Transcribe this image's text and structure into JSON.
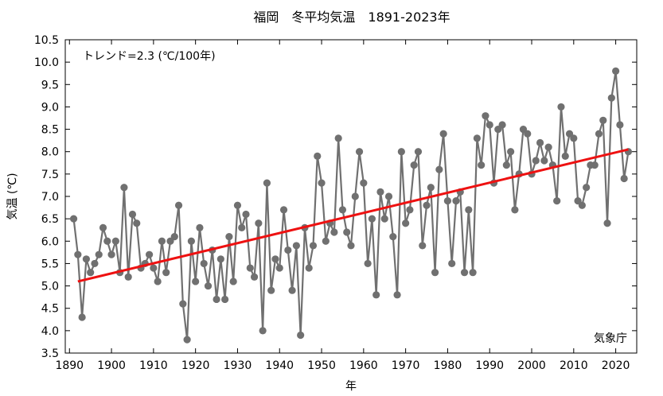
{
  "chart_data": {
    "type": "line",
    "title": "福岡　冬平均気温　1891-2023年",
    "xlabel": "年",
    "ylabel": "気温 (℃)",
    "trend_label": "トレンド=2.3 (℃/100年)",
    "source": "気象庁",
    "xlim": [
      1889,
      2025
    ],
    "ylim": [
      3.5,
      10.5
    ],
    "xticks": [
      1890,
      1900,
      1910,
      1920,
      1930,
      1940,
      1950,
      1960,
      1970,
      1980,
      1990,
      2000,
      2010,
      2020
    ],
    "yticks": [
      3.5,
      4.0,
      4.5,
      5.0,
      5.5,
      6.0,
      6.5,
      7.0,
      7.5,
      8.0,
      8.5,
      9.0,
      9.5,
      10.0,
      10.5
    ],
    "grid": false,
    "colors": {
      "series": "#707070",
      "trend": "#ee1111"
    },
    "x_start": 1891,
    "values": [
      6.5,
      5.7,
      4.3,
      5.6,
      5.3,
      5.5,
      5.7,
      6.3,
      6.0,
      5.7,
      6.0,
      5.3,
      7.2,
      5.2,
      6.6,
      6.4,
      5.4,
      5.5,
      5.7,
      5.4,
      5.1,
      6.0,
      5.3,
      6.0,
      6.1,
      6.8,
      4.6,
      3.8,
      6.0,
      5.1,
      6.3,
      5.5,
      5.0,
      5.8,
      4.7,
      5.6,
      4.7,
      6.1,
      5.1,
      6.8,
      6.3,
      6.6,
      5.4,
      5.2,
      6.4,
      4.0,
      7.3,
      4.9,
      5.6,
      5.4,
      6.7,
      5.8,
      4.9,
      5.9,
      3.9,
      6.3,
      5.4,
      5.9,
      7.9,
      7.3,
      6.0,
      6.4,
      6.2,
      8.3,
      6.7,
      6.2,
      5.9,
      7.0,
      8.0,
      7.3,
      5.5,
      6.5,
      4.8,
      7.1,
      6.5,
      7.0,
      6.1,
      4.8,
      8.0,
      6.4,
      6.7,
      7.7,
      8.0,
      5.9,
      6.8,
      7.2,
      5.3,
      7.6,
      8.4,
      6.9,
      5.5,
      6.9,
      7.1,
      5.3,
      6.7,
      5.3,
      8.3,
      7.7,
      8.8,
      8.6,
      7.3,
      8.5,
      8.6,
      7.7,
      8.0,
      6.7,
      7.5,
      8.5,
      8.4,
      7.5,
      7.8,
      8.2,
      7.8,
      8.1,
      7.7,
      6.9,
      9.0,
      7.9,
      8.4,
      8.3,
      6.9,
      6.8,
      7.2,
      7.7,
      7.7,
      8.4,
      8.7,
      6.4,
      9.2,
      9.8,
      8.6,
      7.4,
      8.0
    ],
    "trend": {
      "x": [
        1892,
        2023
      ],
      "y": [
        5.1,
        8.05
      ]
    }
  }
}
